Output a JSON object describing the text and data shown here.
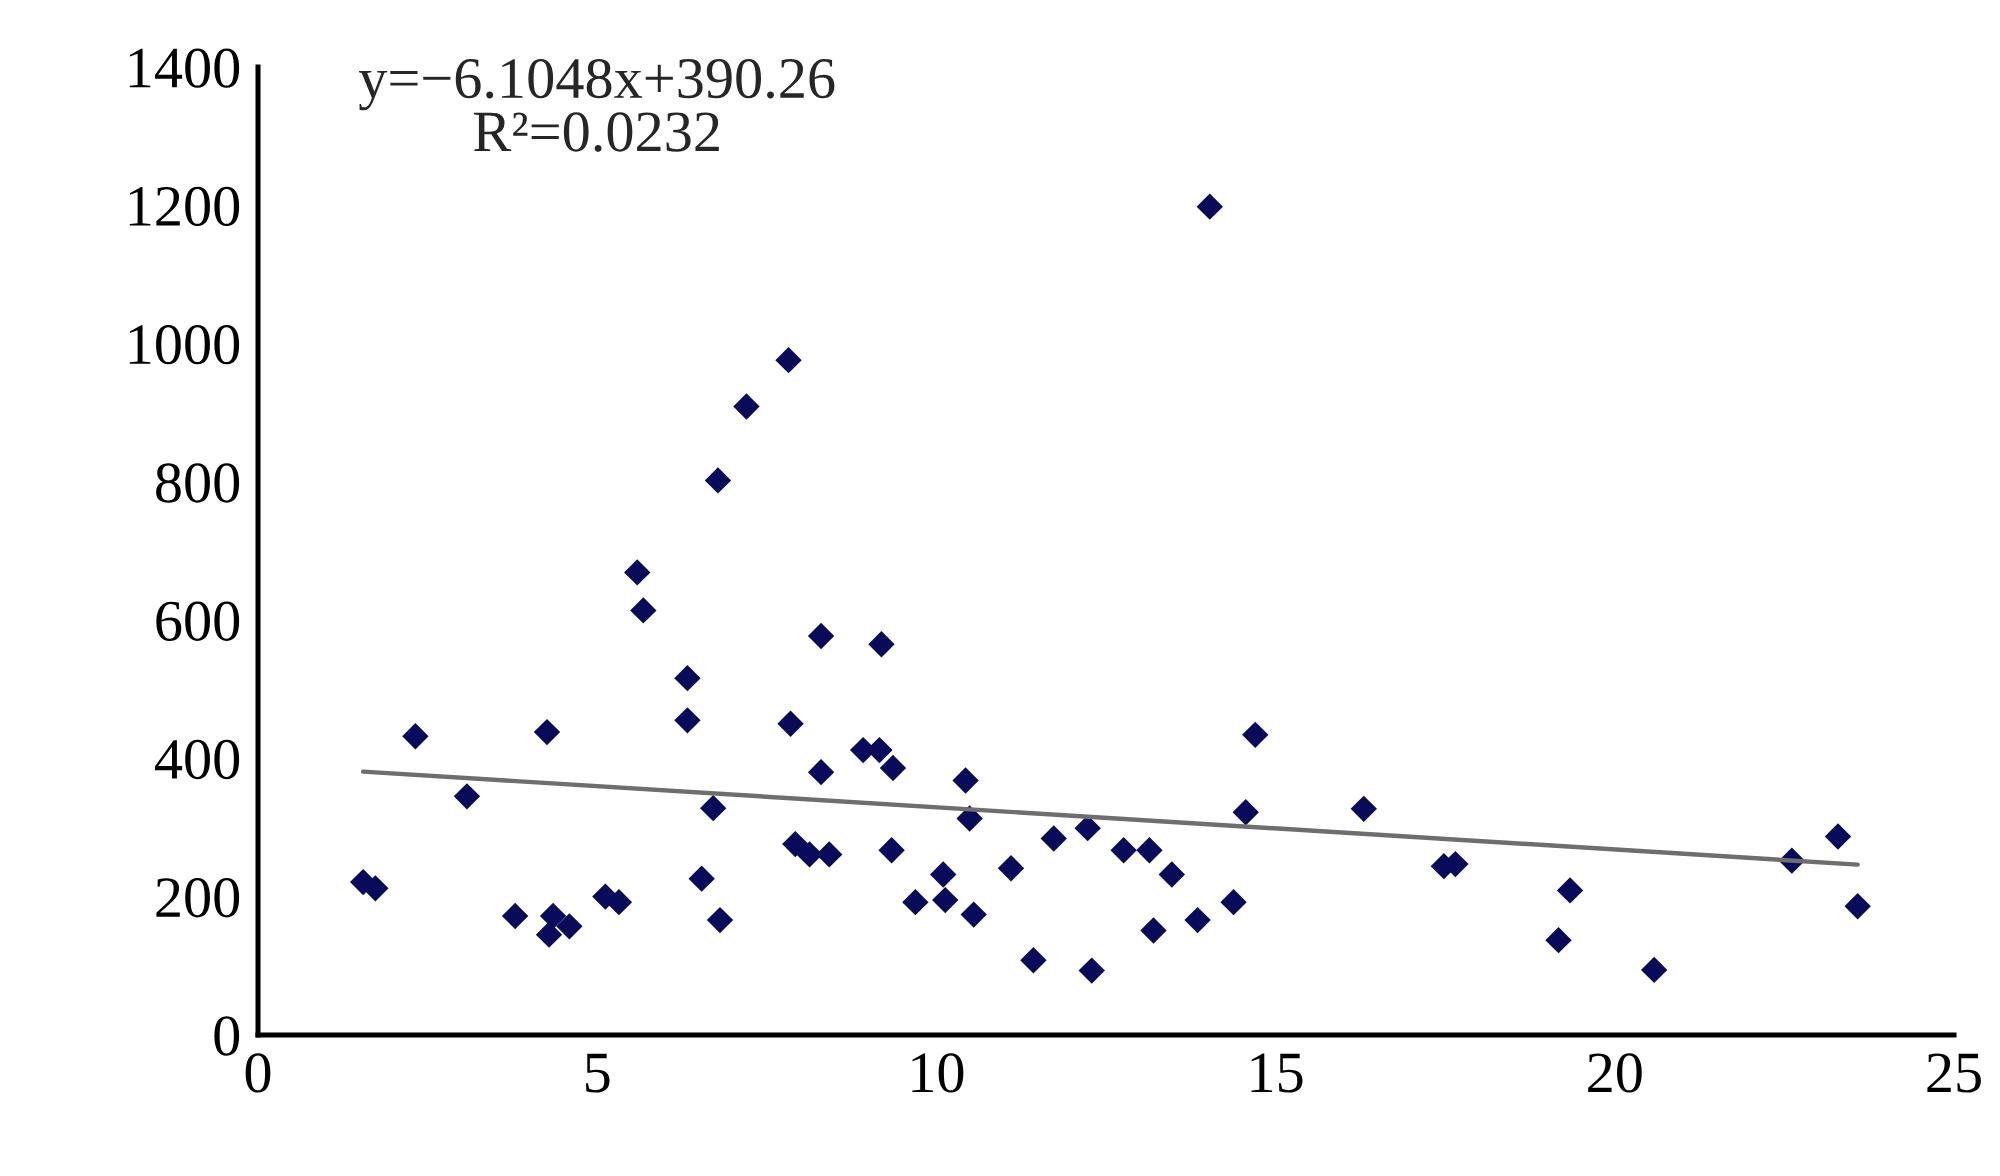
{
  "chart_data": {
    "type": "scatter",
    "annotations": [
      "y=−6.1048x+390.26",
      "R²=0.0232"
    ],
    "xlim": [
      0,
      25
    ],
    "xticks": [
      0,
      5,
      10,
      15,
      20,
      25
    ],
    "ylim": [
      0,
      1400
    ],
    "yticks": [
      0,
      200,
      400,
      600,
      800,
      1000,
      1200,
      1400
    ],
    "grid": false,
    "marker": "diamond",
    "series": [
      {
        "color": "#0a0a5a",
        "x": [
          1.55,
          1.73,
          2.32,
          3.08,
          3.79,
          4.35,
          4.29,
          4.59,
          4.26,
          5.12,
          5.32,
          5.59,
          5.68,
          6.33,
          6.33,
          6.71,
          6.54,
          6.81,
          6.78,
          7.2,
          7.82,
          7.85,
          8.3,
          8.3,
          7.92,
          8.13,
          8.42,
          9.19,
          8.92,
          9.16,
          9.36,
          9.34,
          9.69,
          10.1,
          10.13,
          10.55,
          10.43,
          10.49,
          11.1,
          11.43,
          11.73,
          12.23,
          12.29,
          12.76,
          13.14,
          13.47,
          13.2,
          13.85,
          14.38,
          14.03,
          14.7,
          14.56,
          16.3,
          17.48,
          17.65,
          19.34,
          19.17,
          20.58,
          22.61,
          23.29,
          23.58
        ],
        "values": [
          221,
          212,
          432,
          345,
          172,
          172,
          145,
          157,
          438,
          200,
          192,
          669,
          614,
          516,
          455,
          328,
          226,
          166,
          802,
          909,
          976,
          450,
          577,
          380,
          276,
          261,
          261,
          565,
          412,
          412,
          386,
          267,
          192,
          232,
          195,
          174,
          368,
          313,
          241,
          108,
          284,
          299,
          93,
          267,
          267,
          232,
          151,
          166,
          192,
          1198,
          434,
          322,
          327,
          244,
          247,
          209,
          137,
          94,
          252,
          287,
          186
        ]
      },
      {
        "type": "line",
        "color": "#6e6e6e",
        "marker": "none",
        "x": [
          1.55,
          23.58
        ],
        "values": [
          380.8,
          246.3
        ]
      }
    ]
  }
}
